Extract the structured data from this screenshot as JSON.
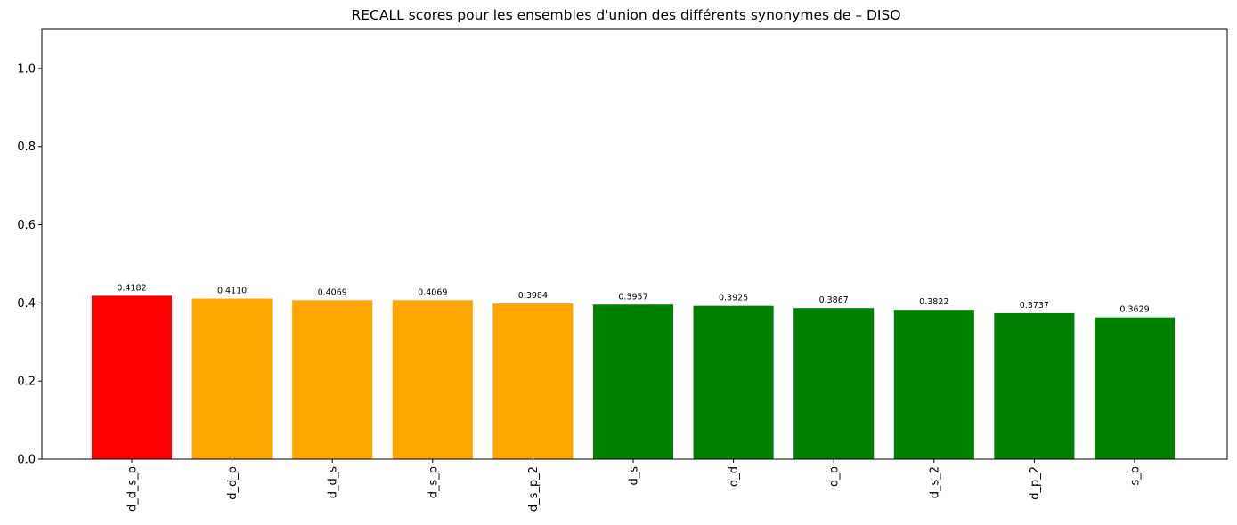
{
  "chart_data": {
    "type": "bar",
    "title": "RECALL scores pour les ensembles d'union des différents synonymes de – DISO",
    "xlabel": "",
    "ylabel": "",
    "ylim": [
      0,
      1.1
    ],
    "yticks": [
      0.0,
      0.2,
      0.4,
      0.6,
      0.8,
      1.0
    ],
    "ytick_labels": [
      "0.0",
      "0.2",
      "0.4",
      "0.6",
      "0.8",
      "1.0"
    ],
    "categories": [
      "d_d_s_p",
      "d_d_p",
      "d_d_s",
      "d_s_p",
      "d_s_p_2",
      "d_s",
      "d_d",
      "d_p",
      "d_s_2",
      "d_p_2",
      "s_p"
    ],
    "values": [
      0.4182,
      0.411,
      0.4069,
      0.4069,
      0.3984,
      0.3957,
      0.3925,
      0.3867,
      0.3822,
      0.3737,
      0.3629
    ],
    "value_labels": [
      "0.4182",
      "0.4110",
      "0.4069",
      "0.4069",
      "0.3984",
      "0.3957",
      "0.3925",
      "0.3867",
      "0.3822",
      "0.3737",
      "0.3629"
    ],
    "bar_colors": [
      "#ff0000",
      "#ffa500",
      "#ffa500",
      "#ffa500",
      "#ffa500",
      "#008000",
      "#008000",
      "#008000",
      "#008000",
      "#008000",
      "#008000"
    ],
    "xtick_rotation_deg": 90,
    "grid": false,
    "legend": "none"
  }
}
